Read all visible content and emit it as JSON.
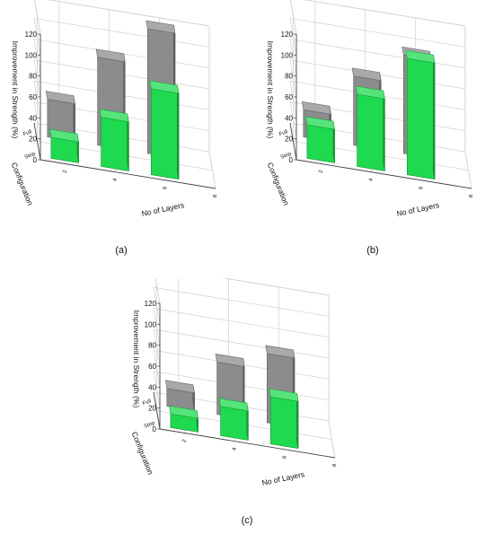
{
  "colors": {
    "full": "#8c8c8c",
    "strip": "#1fd94f"
  },
  "chart_data": [
    {
      "type": "bar",
      "panel_label": "(a)",
      "zlabel": "Improvement in Strength (%)",
      "xlabel": "No of Layers",
      "ylabel": "Configuration",
      "x": [
        2,
        4,
        6
      ],
      "x_ticks": [
        "2",
        "4",
        "6",
        "8"
      ],
      "y_categories": [
        "Full",
        "Strip"
      ],
      "zlim": [
        0,
        120
      ],
      "z_ticks": [
        "0",
        "20",
        "40",
        "60",
        "80",
        "100",
        "120"
      ],
      "series": [
        {
          "name": "Full",
          "values": [
            36,
            84,
            119
          ]
        },
        {
          "name": "Strip",
          "values": [
            20,
            47,
            82
          ]
        }
      ]
    },
    {
      "type": "bar",
      "panel_label": "(b)",
      "zlabel": "Improvement in Strength (%)",
      "xlabel": "No of Layers",
      "ylabel": "Configuration",
      "x": [
        2,
        4,
        6
      ],
      "x_ticks": [
        "2",
        "4",
        "6",
        "8"
      ],
      "y_categories": [
        "Full",
        "Strip"
      ],
      "zlim": [
        0,
        120
      ],
      "z_ticks": [
        "0",
        "20",
        "40",
        "60",
        "80",
        "100",
        "120"
      ],
      "series": [
        {
          "name": "Full",
          "values": [
            26,
            66,
            94
          ]
        },
        {
          "name": "Strip",
          "values": [
            32,
            69,
            111
          ]
        }
      ]
    },
    {
      "type": "bar",
      "panel_label": "(c)",
      "zlabel": "Improvement in Strength (%)",
      "xlabel": "No of Layers",
      "ylabel": "Configuration",
      "x": [
        2,
        4,
        6
      ],
      "x_ticks": [
        "2",
        "4",
        "6",
        "8"
      ],
      "y_categories": [
        "Full",
        "Strip"
      ],
      "zlim": [
        0,
        120
      ],
      "z_ticks": [
        "0",
        "20",
        "40",
        "60",
        "80",
        "100",
        "120"
      ],
      "series": [
        {
          "name": "Full",
          "values": [
            17,
            50,
            66
          ]
        },
        {
          "name": "Strip",
          "values": [
            13,
            28,
            45
          ]
        }
      ]
    }
  ]
}
